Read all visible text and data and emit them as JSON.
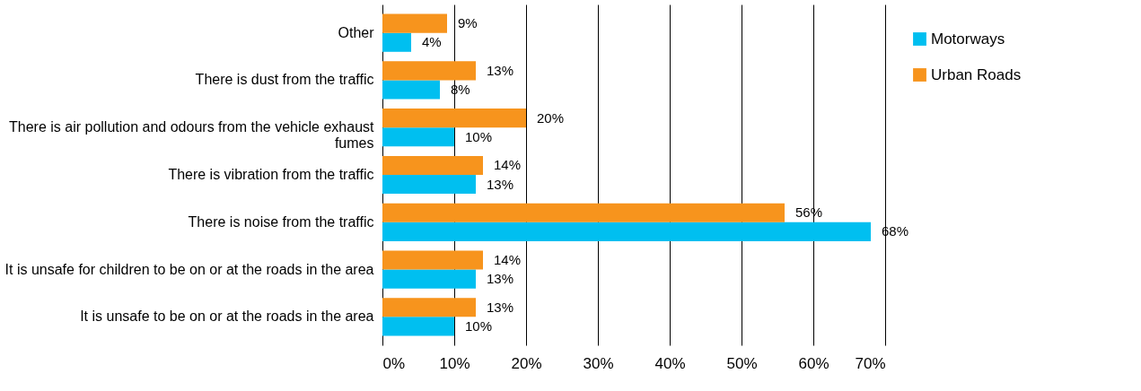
{
  "chart_data": {
    "type": "bar",
    "orientation": "horizontal",
    "categories": [
      "Other",
      "There is dust from the traffic",
      "There is air pollution and odours from the vehicle exhaust fumes",
      "There is vibration from the traffic",
      "There is noise from the traffic",
      "It is unsafe for children to be on or at the roads in the area",
      "It is unsafe to be on or at the roads in the area"
    ],
    "series": [
      {
        "name": "Motorways",
        "color": "#00bff0",
        "values": [
          4,
          8,
          10,
          13,
          68,
          13,
          10
        ],
        "value_labels": [
          "4%",
          "8%",
          "10%",
          "13%",
          "68%",
          "13%",
          "10%"
        ]
      },
      {
        "name": "Urban Roads",
        "color": "#f7941d",
        "values": [
          9,
          13,
          20,
          14,
          56,
          14,
          13
        ],
        "value_labels": [
          "9%",
          "13%",
          "20%",
          "14%",
          "56%",
          "14%",
          "13%"
        ]
      }
    ],
    "xlim": [
      0,
      70
    ],
    "xticks": [
      {
        "value": 0,
        "label": "0%"
      },
      {
        "value": 10,
        "label": "10%"
      },
      {
        "value": 20,
        "label": "20%"
      },
      {
        "value": 30,
        "label": "30%"
      },
      {
        "value": 40,
        "label": "40%"
      },
      {
        "value": 50,
        "label": "50%"
      },
      {
        "value": 60,
        "label": "60%"
      },
      {
        "value": 70,
        "label": "70%"
      }
    ],
    "grid": "x",
    "legend": "top right"
  }
}
